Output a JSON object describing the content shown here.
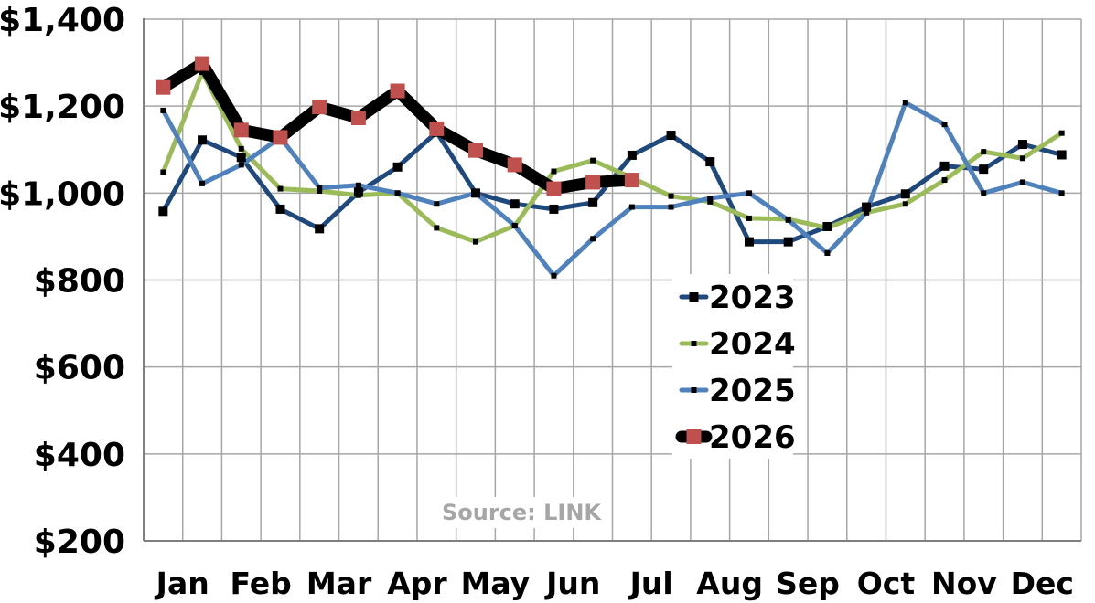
{
  "chart_data": {
    "type": "line",
    "categories": [
      "Jan",
      "Jan2",
      "Feb",
      "Feb2",
      "Mar",
      "Mar2",
      "Apr",
      "Apr2",
      "May",
      "May2",
      "Jun",
      "Jun2",
      "Jul",
      "Jul2",
      "Aug",
      "Aug2",
      "Sep",
      "Sep2",
      "Oct",
      "Oct2",
      "Nov",
      "Nov2",
      "Dec",
      "Dec2"
    ],
    "month_labels": [
      "Jan",
      "Feb",
      "Mar",
      "Apr",
      "May",
      "Jun",
      "Jul",
      "Aug",
      "Sep",
      "Oct",
      "Nov",
      "Dec"
    ],
    "ylim": [
      200,
      1400
    ],
    "yticks": [
      200,
      400,
      600,
      800,
      1000,
      1200,
      1400
    ],
    "ytick_labels": [
      "$200",
      "$400",
      "$600",
      "$800",
      "$1,000",
      "$1,200",
      "$1,400"
    ],
    "grid": true,
    "legend_position": "center-right",
    "source": "Source: LINK",
    "series": [
      {
        "name": "2023",
        "color": "#1f497d",
        "marker_color": "#000000",
        "values": [
          958,
          1122,
          1082,
          963,
          918,
          1002,
          1060,
          1140,
          1000,
          975,
          963,
          978,
          1087,
          1133,
          1072,
          888,
          888,
          923,
          968,
          998,
          1062,
          1055,
          1112,
          1088
        ]
      },
      {
        "name": "2024",
        "color": "#9bbb59",
        "marker_color": "#000000",
        "values": [
          1048,
          1278,
          1102,
          1010,
          1005,
          995,
          1000,
          920,
          888,
          925,
          1050,
          1075,
          1035,
          993,
          980,
          942,
          940,
          920,
          955,
          975,
          1030,
          1095,
          1080,
          1138
        ]
      },
      {
        "name": "2025",
        "color": "#4f81bd",
        "marker_color": "#000000",
        "values": [
          1190,
          1022,
          1065,
          1128,
          1012,
          1018,
          1000,
          975,
          1000,
          925,
          810,
          895,
          968,
          968,
          988,
          1000,
          938,
          862,
          955,
          1208,
          1158,
          1000,
          1025,
          1000
        ]
      },
      {
        "name": "2026",
        "color": "#000000",
        "marker_color": "#c0504d",
        "values": [
          1243,
          1298,
          1145,
          1128,
          1198,
          1173,
          1235,
          1148,
          1098,
          1065,
          1010,
          1025,
          1030,
          null,
          null,
          null,
          null,
          null,
          null,
          null,
          null,
          null,
          null,
          null
        ]
      }
    ]
  }
}
